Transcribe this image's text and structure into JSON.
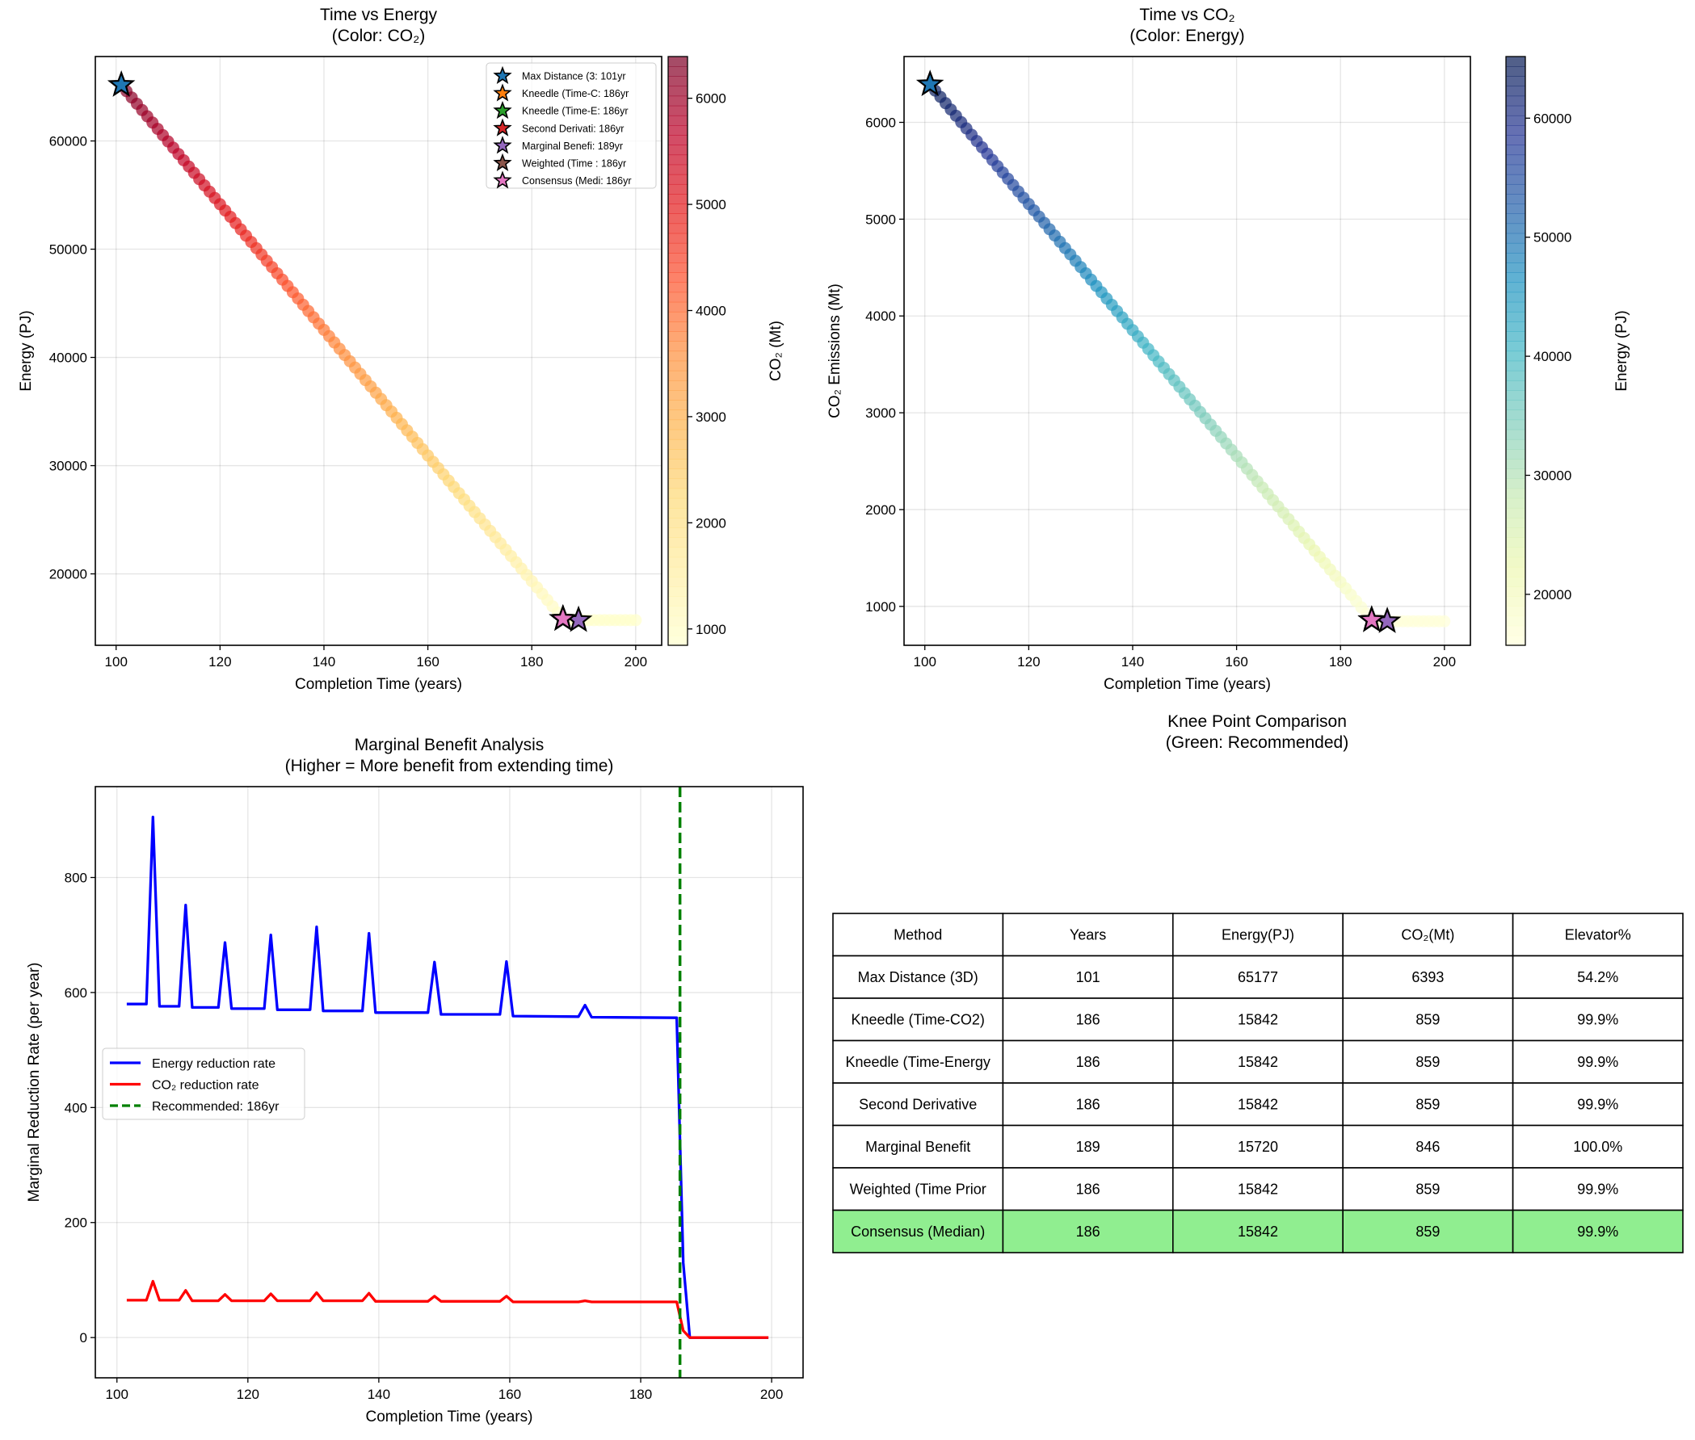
{
  "colors": {
    "energy_line": "#0000ff",
    "co2_line": "#ff0000",
    "recommended_line": "#008000",
    "consensus_row": "#90ee90",
    "markers": [
      "#1f77b4",
      "#ff7f0e",
      "#2ca02c",
      "#d62728",
      "#9467bd",
      "#8c564b",
      "#e377c2"
    ],
    "colormap_co2": [
      "#ffffcc",
      "#ffeda0",
      "#fed976",
      "#feb24c",
      "#fd8d3c",
      "#fc4e2a",
      "#e31a1c",
      "#bd0026",
      "#800026"
    ],
    "colormap_energy": [
      "#ffffd9",
      "#edf8b1",
      "#c7e9b4",
      "#7fcdbb",
      "#41b6c4",
      "#1d91c0",
      "#225ea8",
      "#253494",
      "#081d58"
    ]
  },
  "chart_data": [
    {
      "type": "scatter",
      "title": "Time vs Energy",
      "subtitle": "(Color: CO₂)",
      "xlabel": "Completion Time (years)",
      "ylabel": "Energy (PJ)",
      "colorbar_label": "CO₂ (Mt)",
      "colorbar_ticks": [
        "1000",
        "2000",
        "3000",
        "4000",
        "5000",
        "6000"
      ],
      "colorbar_range": [
        846,
        6393
      ],
      "xlim": [
        96,
        205
      ],
      "ylim": [
        13400,
        67800
      ],
      "xticks": [
        "100",
        "120",
        "140",
        "160",
        "180",
        "200"
      ],
      "yticks": [
        "20000",
        "30000",
        "40000",
        "50000",
        "60000"
      ],
      "grid": true,
      "legend_placement": "top-right",
      "legend": [
        "Max Distance (3: 101yr",
        "Kneedle (Time-C: 186yr",
        "Kneedle (Time-E: 186yr",
        "Second Derivati: 186yr",
        "Marginal Benefi: 189yr",
        "Weighted (Time : 186yr",
        "Consensus (Medi: 186yr"
      ]
    },
    {
      "type": "scatter",
      "title": "Time vs CO₂",
      "subtitle": "(Color: Energy)",
      "xlabel": "Completion Time (years)",
      "ylabel": "CO₂ Emissions (Mt)",
      "colorbar_label": "Energy (PJ)",
      "colorbar_ticks": [
        "20000",
        "30000",
        "40000",
        "50000",
        "60000"
      ],
      "colorbar_range": [
        15720,
        65177
      ],
      "xlim": [
        96,
        205
      ],
      "ylim": [
        598,
        6680
      ],
      "xticks": [
        "100",
        "120",
        "140",
        "160",
        "180",
        "200"
      ],
      "yticks": [
        "1000",
        "2000",
        "3000",
        "4000",
        "5000",
        "6000"
      ],
      "grid": true
    },
    {
      "type": "line",
      "title": "Marginal Benefit Analysis",
      "subtitle": "(Higher = More benefit from extending time)",
      "xlabel": "Completion Time (years)",
      "ylabel": "Marginal Reduction Rate (per year)",
      "xlim": [
        96.7,
        204.8
      ],
      "ylim": [
        -70,
        958
      ],
      "xticks": [
        "100",
        "120",
        "140",
        "160",
        "180",
        "200"
      ],
      "yticks": [
        "0",
        "200",
        "400",
        "600",
        "800"
      ],
      "grid": true,
      "legend_placement": "center-left",
      "x": [
        101.5,
        104.5,
        105.5,
        106.5,
        109.5,
        110.5,
        111.5,
        115.5,
        116.5,
        117.5,
        122.5,
        123.5,
        124.5,
        129.5,
        130.5,
        131.5,
        137.5,
        138.5,
        139.5,
        147.5,
        148.5,
        149.5,
        158.5,
        159.5,
        160.5,
        170.5,
        171.5,
        172.5,
        185.5,
        186.5,
        187.5,
        199.5
      ],
      "series": [
        {
          "name": "Energy reduction rate",
          "values": [
            580,
            580,
            905,
            576,
            576,
            752,
            574,
            574,
            687,
            572,
            572,
            700,
            570,
            570,
            714,
            568,
            568,
            703,
            565,
            565,
            653,
            562,
            562,
            654,
            559,
            558,
            578,
            557,
            556,
            130,
            0,
            0
          ]
        },
        {
          "name": "CO₂ reduction rate",
          "values": [
            65,
            65,
            98,
            65,
            65,
            82,
            64,
            64,
            75,
            64,
            64,
            76,
            64,
            64,
            78,
            64,
            64,
            77,
            63,
            63,
            72,
            63,
            63,
            72,
            62,
            62,
            64,
            62,
            62,
            12,
            0,
            0
          ]
        }
      ],
      "vline": {
        "x": 186,
        "name": "Recommended: 186yr"
      }
    },
    {
      "type": "table",
      "title": "Knee Point Comparison",
      "subtitle": "(Green: Recommended)",
      "columns": [
        "Method",
        "Years",
        "Energy(PJ)",
        "CO₂(Mt)",
        "Elevator%"
      ],
      "rows": [
        [
          "Max Distance (3D)",
          "101",
          "65177",
          "6393",
          "54.2%"
        ],
        [
          "Kneedle (Time-CO2)",
          "186",
          "15842",
          "859",
          "99.9%"
        ],
        [
          "Kneedle (Time-Energy",
          "186",
          "15842",
          "859",
          "99.9%"
        ],
        [
          "Second Derivative",
          "186",
          "15842",
          "859",
          "99.9%"
        ],
        [
          "Marginal Benefit",
          "189",
          "15720",
          "846",
          "100.0%"
        ],
        [
          "Weighted (Time Prior",
          "186",
          "15842",
          "859",
          "99.9%"
        ],
        [
          "Consensus (Median)",
          "186",
          "15842",
          "859",
          "99.9%"
        ]
      ],
      "highlight_row": 6
    }
  ],
  "points": {
    "years": [
      101,
      102,
      103,
      104,
      105,
      106,
      107,
      108,
      109,
      110,
      111,
      112,
      113,
      114,
      115,
      116,
      117,
      118,
      119,
      120,
      121,
      122,
      123,
      124,
      125,
      126,
      127,
      128,
      129,
      130,
      131,
      132,
      133,
      134,
      135,
      136,
      137,
      138,
      139,
      140,
      141,
      142,
      143,
      144,
      145,
      146,
      147,
      148,
      149,
      150,
      151,
      152,
      153,
      154,
      155,
      156,
      157,
      158,
      159,
      160,
      161,
      162,
      163,
      164,
      165,
      166,
      167,
      168,
      169,
      170,
      171,
      172,
      173,
      174,
      175,
      176,
      177,
      178,
      179,
      180,
      181,
      182,
      183,
      184,
      185,
      186,
      187,
      188,
      189,
      190,
      191,
      192,
      193,
      194,
      195,
      196,
      197,
      198,
      199,
      200
    ],
    "energy": [
      65177,
      64597,
      64016,
      63436,
      62855,
      62275,
      61695,
      61114,
      60534,
      59953,
      59373,
      58793,
      58212,
      57632,
      57051,
      56471,
      55891,
      55310,
      54730,
      54149,
      53569,
      52989,
      52408,
      51828,
      51247,
      50667,
      50087,
      49506,
      48926,
      48345,
      47765,
      47185,
      46604,
      46024,
      45443,
      44863,
      44283,
      43702,
      43122,
      42541,
      41961,
      41381,
      40800,
      40220,
      39639,
      39059,
      38479,
      37898,
      37318,
      36737,
      36157,
      35577,
      34996,
      34416,
      33835,
      33255,
      32675,
      32094,
      31514,
      30933,
      30353,
      29773,
      29192,
      28612,
      28031,
      27451,
      26871,
      26290,
      25710,
      25129,
      24549,
      23969,
      23388,
      22808,
      22227,
      21647,
      21067,
      20486,
      19906,
      19325,
      18745,
      18165,
      17584,
      17004,
      16423,
      15842,
      15800,
      15760,
      15720,
      15720,
      15720,
      15720,
      15720,
      15720,
      15720,
      15720,
      15720,
      15720,
      15720,
      15720
    ],
    "co2": [
      6393,
      6328,
      6263,
      6198,
      6133,
      6068,
      6002,
      5937,
      5872,
      5807,
      5742,
      5677,
      5612,
      5547,
      5482,
      5417,
      5352,
      5286,
      5221,
      5156,
      5091,
      5026,
      4961,
      4896,
      4831,
      4766,
      4701,
      4636,
      4570,
      4505,
      4440,
      4375,
      4310,
      4245,
      4180,
      4115,
      4050,
      3985,
      3919,
      3854,
      3789,
      3724,
      3659,
      3594,
      3529,
      3464,
      3399,
      3334,
      3269,
      3203,
      3138,
      3073,
      3008,
      2943,
      2878,
      2813,
      2748,
      2683,
      2618,
      2553,
      2487,
      2422,
      2357,
      2292,
      2227,
      2162,
      2097,
      2032,
      1967,
      1902,
      1836,
      1771,
      1706,
      1641,
      1576,
      1511,
      1446,
      1381,
      1316,
      1251,
      1186,
      1120,
      1055,
      990,
      925,
      859,
      855,
      850,
      846,
      846,
      846,
      846,
      846,
      846,
      846,
      846,
      846,
      846,
      846,
      846
    ]
  },
  "knee_points": [
    {
      "year": 101,
      "energy": 65177,
      "co2": 6393
    },
    {
      "year": 186,
      "energy": 15842,
      "co2": 859
    },
    {
      "year": 186,
      "energy": 15842,
      "co2": 859
    },
    {
      "year": 186,
      "energy": 15842,
      "co2": 859
    },
    {
      "year": 189,
      "energy": 15720,
      "co2": 846
    },
    {
      "year": 186,
      "energy": 15842,
      "co2": 859
    },
    {
      "year": 186,
      "energy": 15842,
      "co2": 859
    }
  ]
}
